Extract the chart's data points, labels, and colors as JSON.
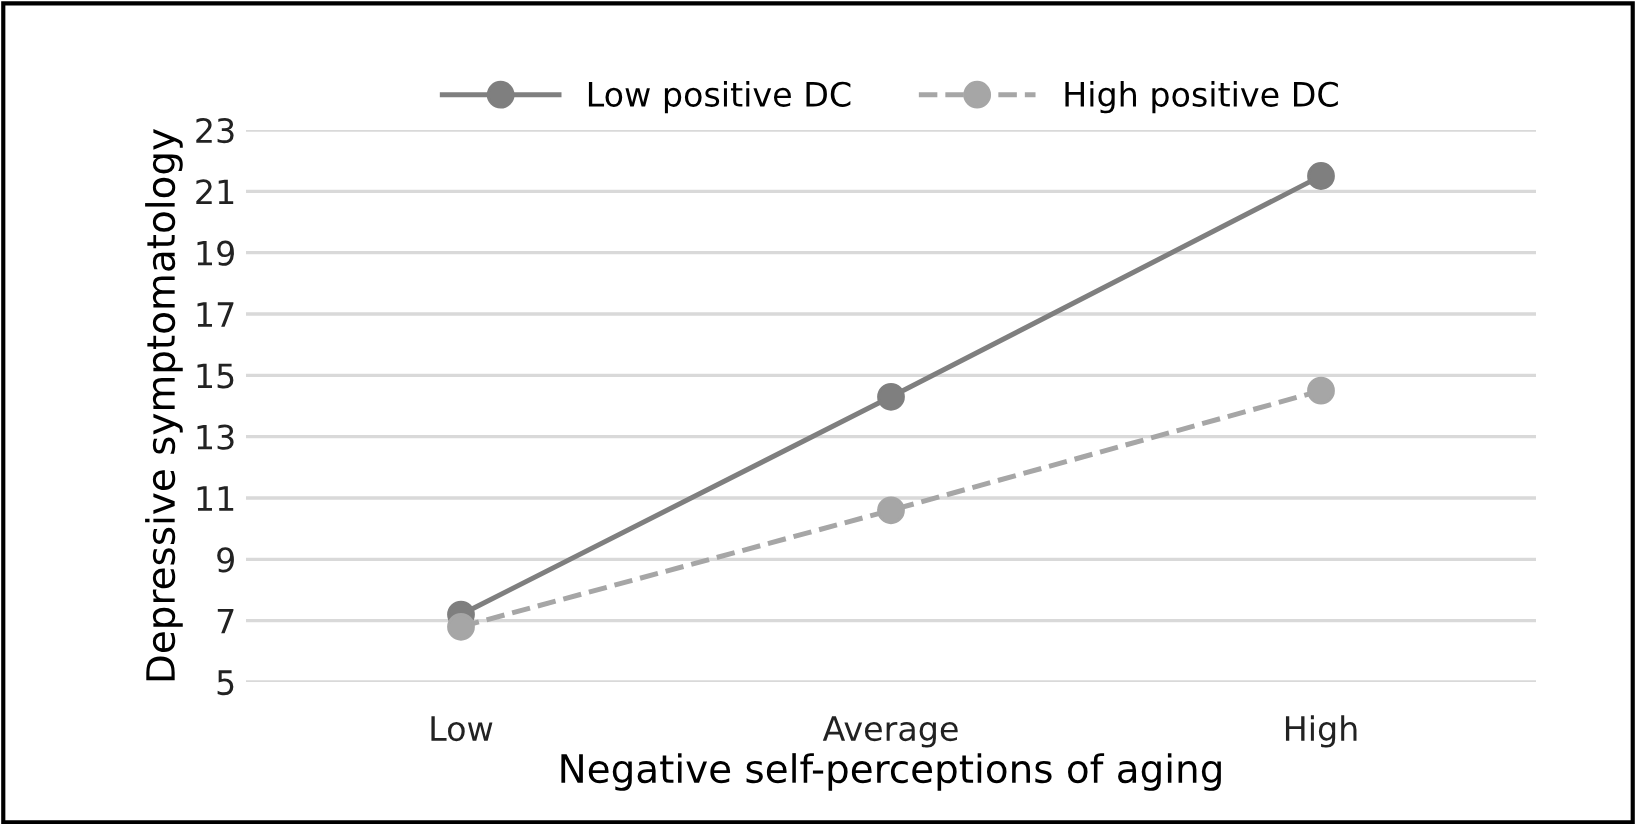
{
  "chart_data": {
    "type": "line",
    "xlabel": "Negative self-perceptions of aging",
    "ylabel": "Depressive symptomatology",
    "categories": [
      "Low",
      "Average",
      "High"
    ],
    "series": [
      {
        "name": "Low positive DC",
        "color": "#7f7f7f",
        "values": [
          7.2,
          14.3,
          21.5
        ],
        "line_style": "solid"
      },
      {
        "name": "High positive DC",
        "color": "#a6a6a6",
        "values": [
          6.8,
          10.6,
          14.5
        ],
        "line_style": "dashed"
      }
    ],
    "ylim": [
      5,
      23
    ],
    "yticks": [
      5,
      7,
      9,
      11,
      13,
      15,
      17,
      19,
      21,
      23
    ],
    "grid": "y",
    "legend": "top",
    "marker": "circle"
  }
}
